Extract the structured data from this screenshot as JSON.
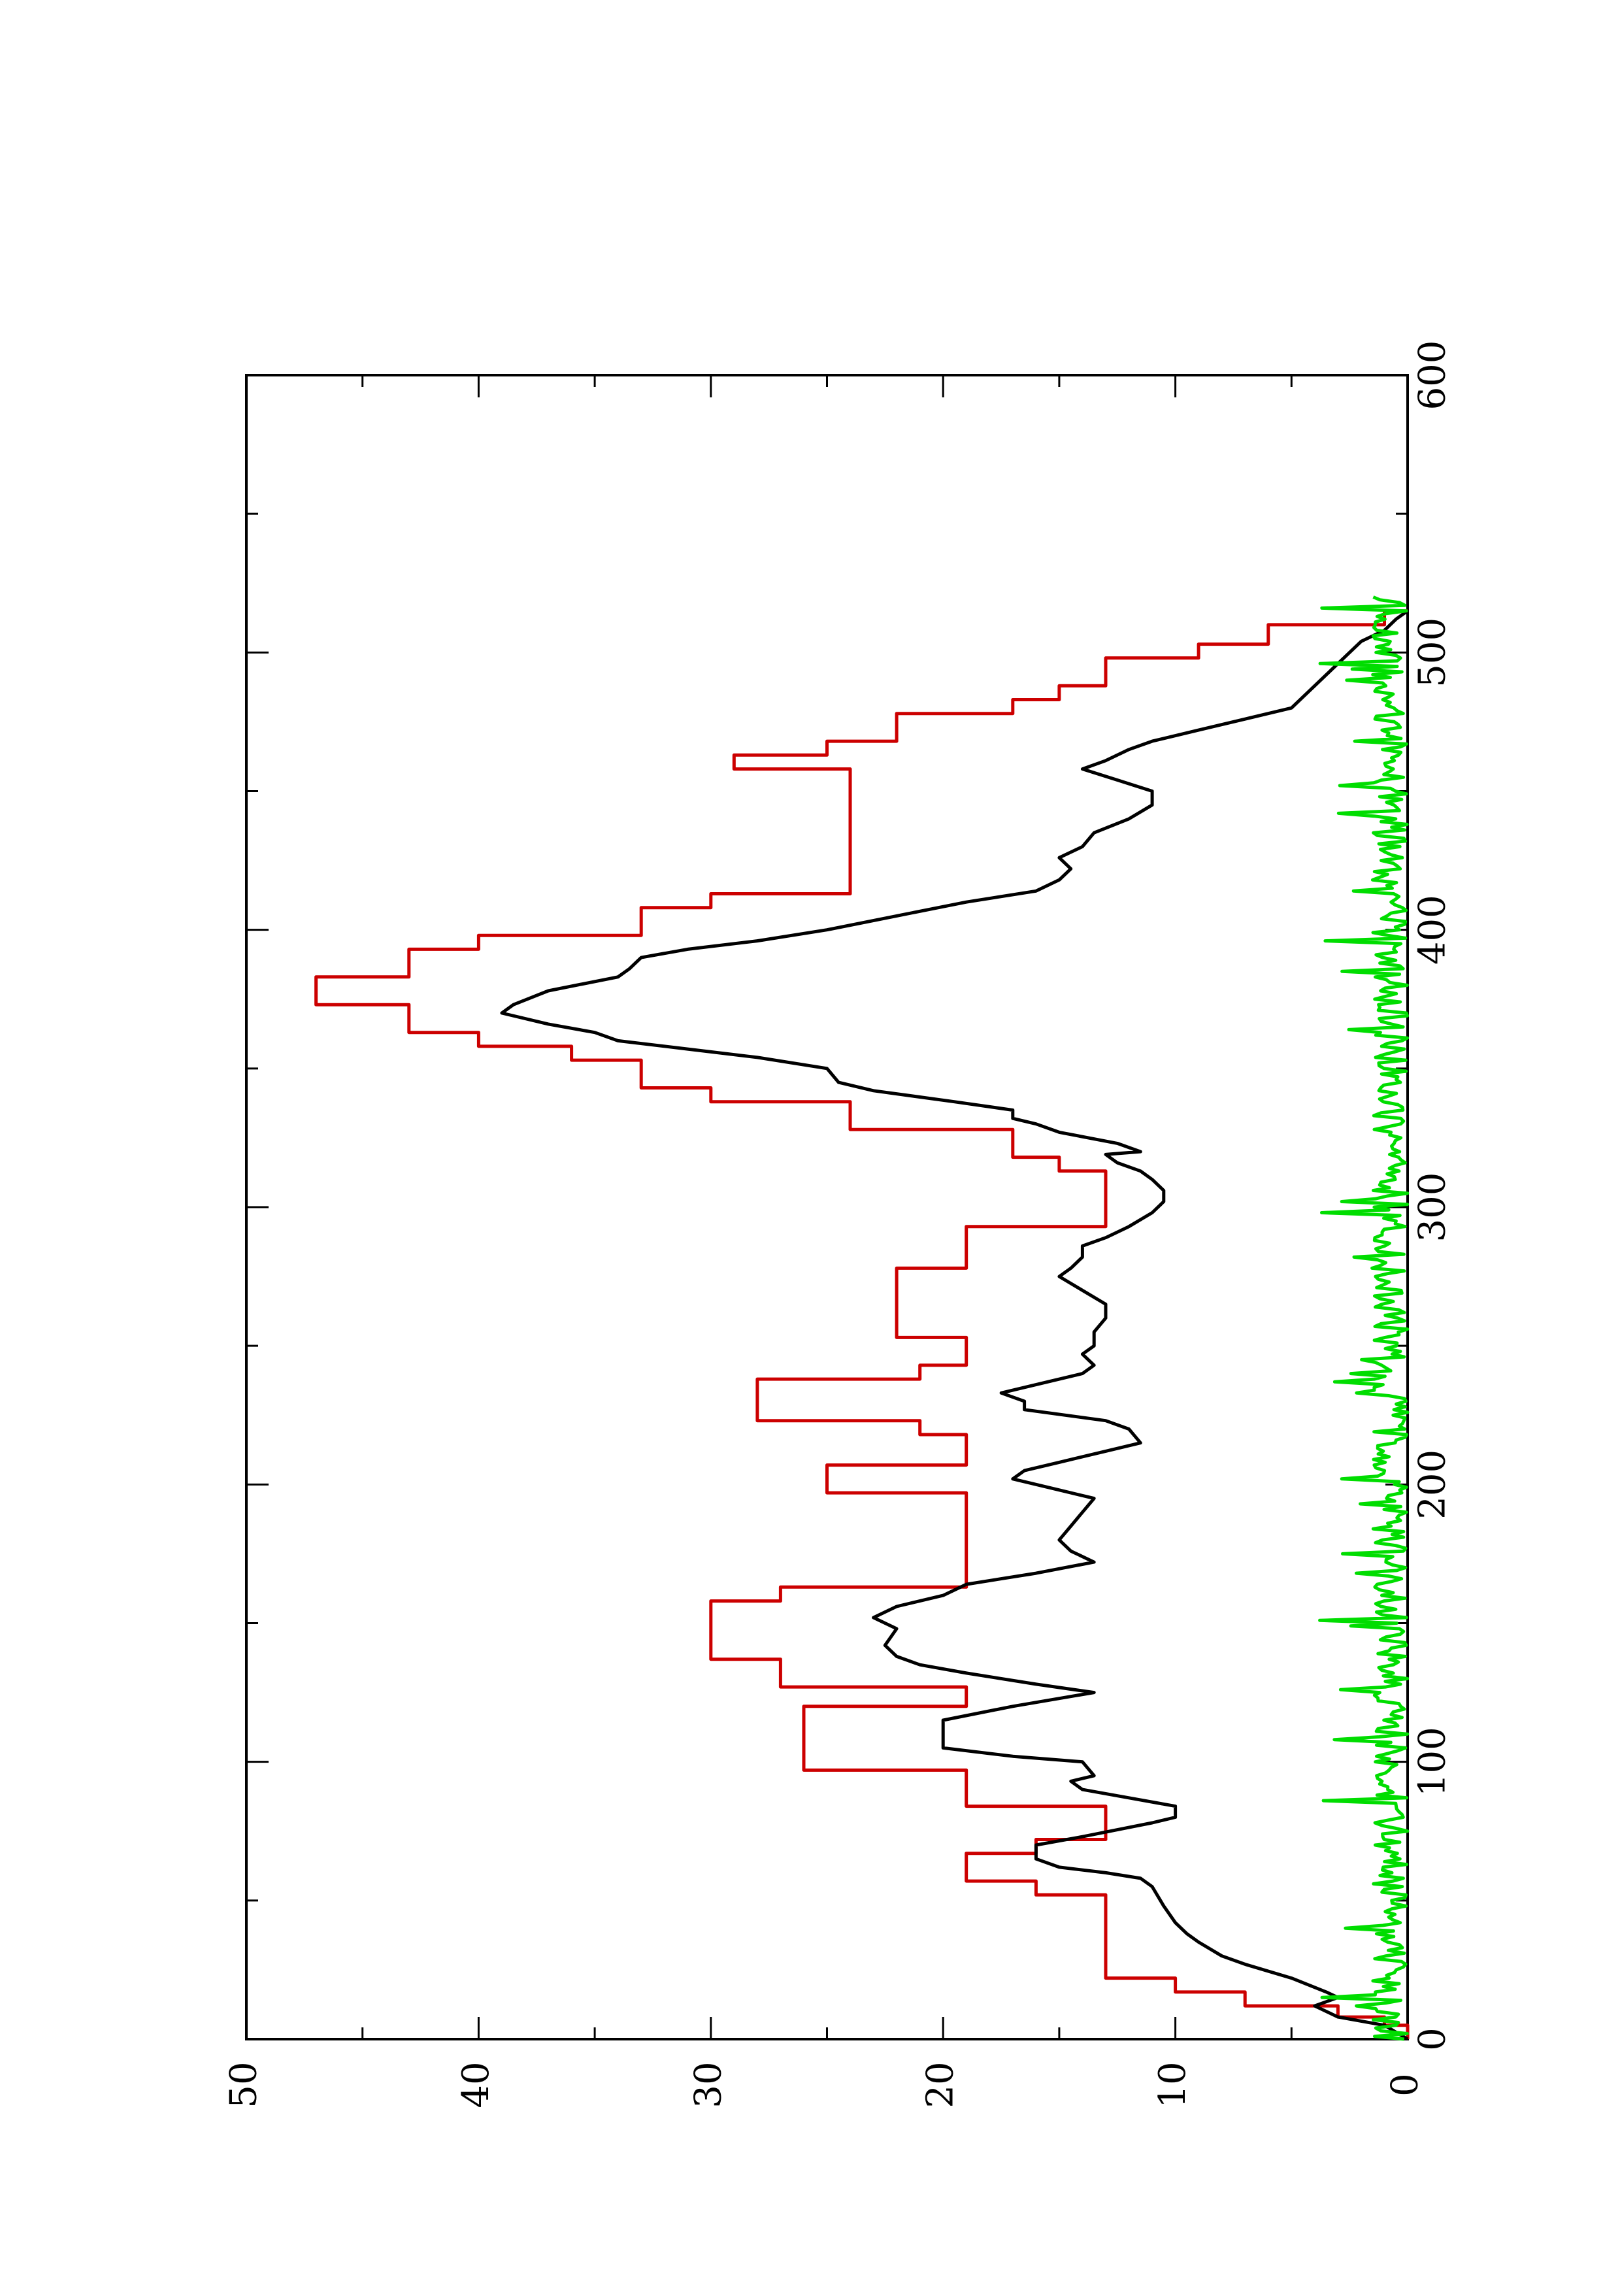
{
  "chart_data": {
    "type": "line",
    "orientation": "page rotated 90 degrees counter-clockwise",
    "title": "",
    "xlabel": "",
    "ylabel": "",
    "xlim": [
      0,
      600
    ],
    "ylim": [
      0,
      50
    ],
    "x_ticks": [
      0,
      100,
      200,
      300,
      400,
      500,
      600
    ],
    "x_tick_labels": [
      "0",
      "100",
      "200",
      "300",
      "400",
      "500",
      "600"
    ],
    "x_minor_ticks": [
      50,
      150,
      250,
      350,
      450,
      550
    ],
    "y_ticks": [
      0,
      10,
      20,
      30,
      40,
      50
    ],
    "y_tick_labels": [
      "0",
      "10",
      "20",
      "30",
      "40",
      "50"
    ],
    "y_minor_ticks": [
      5,
      15,
      25,
      35,
      45
    ],
    "grid": false,
    "legend": "none",
    "series": [
      {
        "color": "#cc0000",
        "step": true,
        "points": [
          [
            0,
            0
          ],
          [
            5,
            0
          ],
          [
            5,
            1
          ],
          [
            8,
            1
          ],
          [
            8,
            3
          ],
          [
            12,
            3
          ],
          [
            12,
            7
          ],
          [
            17,
            7
          ],
          [
            17,
            10
          ],
          [
            22,
            10
          ],
          [
            22,
            13
          ],
          [
            52,
            13
          ],
          [
            52,
            16
          ],
          [
            57,
            16
          ],
          [
            57,
            19
          ],
          [
            67,
            19
          ],
          [
            67,
            16
          ],
          [
            72,
            16
          ],
          [
            72,
            13
          ],
          [
            84,
            13
          ],
          [
            84,
            19
          ],
          [
            97,
            19
          ],
          [
            97,
            26
          ],
          [
            120,
            26
          ],
          [
            120,
            19
          ],
          [
            127,
            19
          ],
          [
            127,
            27
          ],
          [
            137,
            27
          ],
          [
            137,
            30
          ],
          [
            158,
            30
          ],
          [
            158,
            27
          ],
          [
            163,
            27
          ],
          [
            163,
            19
          ],
          [
            197,
            19
          ],
          [
            197,
            25
          ],
          [
            207,
            25
          ],
          [
            207,
            19
          ],
          [
            218,
            19
          ],
          [
            218,
            21
          ],
          [
            223,
            21
          ],
          [
            223,
            28
          ],
          [
            238,
            28
          ],
          [
            238,
            21
          ],
          [
            243,
            21
          ],
          [
            243,
            19
          ],
          [
            253,
            19
          ],
          [
            253,
            22
          ],
          [
            278,
            22
          ],
          [
            278,
            19
          ],
          [
            293,
            19
          ],
          [
            293,
            13
          ],
          [
            313,
            13
          ],
          [
            313,
            15
          ],
          [
            318,
            15
          ],
          [
            318,
            17
          ],
          [
            328,
            17
          ],
          [
            328,
            24
          ],
          [
            338,
            24
          ],
          [
            338,
            30
          ],
          [
            343,
            30
          ],
          [
            343,
            33
          ],
          [
            353,
            33
          ],
          [
            353,
            36
          ],
          [
            358,
            36
          ],
          [
            358,
            40
          ],
          [
            363,
            40
          ],
          [
            363,
            43
          ],
          [
            373,
            43
          ],
          [
            373,
            47
          ],
          [
            383,
            47
          ],
          [
            383,
            43
          ],
          [
            393,
            43
          ],
          [
            393,
            40
          ],
          [
            398,
            40
          ],
          [
            398,
            33
          ],
          [
            408,
            33
          ],
          [
            408,
            30
          ],
          [
            413,
            30
          ],
          [
            413,
            24
          ],
          [
            458,
            24
          ],
          [
            458,
            29
          ],
          [
            463,
            29
          ],
          [
            463,
            25
          ],
          [
            468,
            25
          ],
          [
            468,
            22
          ],
          [
            478,
            22
          ],
          [
            478,
            17
          ],
          [
            483,
            17
          ],
          [
            483,
            15
          ],
          [
            488,
            15
          ],
          [
            488,
            13
          ],
          [
            498,
            13
          ],
          [
            498,
            9
          ],
          [
            503,
            9
          ],
          [
            503,
            6
          ],
          [
            510,
            6
          ],
          [
            510,
            1
          ],
          [
            515,
            1
          ],
          [
            515,
            0
          ]
        ]
      },
      {
        "color": "#000000",
        "step": false,
        "points": [
          [
            0,
            0
          ],
          [
            5,
            1
          ],
          [
            8,
            3
          ],
          [
            12,
            4
          ],
          [
            15,
            3
          ],
          [
            17,
            3.5
          ],
          [
            22,
            5
          ],
          [
            27,
            7
          ],
          [
            30,
            8
          ],
          [
            35,
            9
          ],
          [
            38,
            9.5
          ],
          [
            42,
            10
          ],
          [
            48,
            10.5
          ],
          [
            55,
            11
          ],
          [
            58,
            11.5
          ],
          [
            60,
            13
          ],
          [
            62,
            15
          ],
          [
            65,
            16
          ],
          [
            70,
            16
          ],
          [
            73,
            14
          ],
          [
            78,
            11
          ],
          [
            80,
            10
          ],
          [
            84,
            10
          ],
          [
            87,
            12
          ],
          [
            90,
            14
          ],
          [
            93,
            14.5
          ],
          [
            95,
            13.5
          ],
          [
            100,
            14
          ],
          [
            102,
            17
          ],
          [
            105,
            20
          ],
          [
            115,
            20
          ],
          [
            120,
            17
          ],
          [
            125,
            13.5
          ],
          [
            128,
            16
          ],
          [
            132,
            19
          ],
          [
            135,
            21
          ],
          [
            138,
            22
          ],
          [
            142,
            22.5
          ],
          [
            148,
            22
          ],
          [
            152,
            23
          ],
          [
            156,
            22
          ],
          [
            160,
            20
          ],
          [
            164,
            19
          ],
          [
            168,
            16
          ],
          [
            172,
            13.5
          ],
          [
            176,
            14.5
          ],
          [
            180,
            15
          ],
          [
            185,
            14.5
          ],
          [
            190,
            14
          ],
          [
            195,
            13.5
          ],
          [
            198,
            15
          ],
          [
            202,
            17
          ],
          [
            205,
            16.5
          ],
          [
            208,
            15
          ],
          [
            212,
            13
          ],
          [
            215,
            11.5
          ],
          [
            220,
            12
          ],
          [
            223,
            13
          ],
          [
            227,
            16.5
          ],
          [
            230,
            16.5
          ],
          [
            233,
            17.5
          ],
          [
            236,
            16
          ],
          [
            240,
            14
          ],
          [
            243,
            13.5
          ],
          [
            247,
            14
          ],
          [
            250,
            13.5
          ],
          [
            255,
            13.5
          ],
          [
            260,
            13
          ],
          [
            265,
            13
          ],
          [
            270,
            14
          ],
          [
            275,
            15
          ],
          [
            278,
            14.5
          ],
          [
            282,
            14
          ],
          [
            286,
            14
          ],
          [
            289,
            13
          ],
          [
            293,
            12
          ],
          [
            298,
            11
          ],
          [
            302,
            10.5
          ],
          [
            306,
            10.5
          ],
          [
            310,
            11
          ],
          [
            313,
            11.5
          ],
          [
            316,
            12.5
          ],
          [
            319,
            13
          ],
          [
            320,
            11.5
          ],
          [
            323,
            12.5
          ],
          [
            327,
            15
          ],
          [
            330,
            16
          ],
          [
            332,
            17
          ],
          [
            335,
            17
          ],
          [
            338,
            19.5
          ],
          [
            342,
            23
          ],
          [
            345,
            24.5
          ],
          [
            350,
            25
          ],
          [
            354,
            28
          ],
          [
            357,
            31
          ],
          [
            360,
            34
          ],
          [
            363,
            35
          ],
          [
            366,
            37
          ],
          [
            370,
            39
          ],
          [
            373,
            38.5
          ],
          [
            378,
            37
          ],
          [
            383,
            34
          ],
          [
            386,
            33.5
          ],
          [
            390,
            33
          ],
          [
            393,
            31
          ],
          [
            396,
            28
          ],
          [
            400,
            25
          ],
          [
            405,
            22
          ],
          [
            410,
            19
          ],
          [
            414,
            16
          ],
          [
            418,
            15
          ],
          [
            422,
            14.5
          ],
          [
            426,
            15
          ],
          [
            430,
            14
          ],
          [
            435,
            13.5
          ],
          [
            440,
            12
          ],
          [
            445,
            11
          ],
          [
            450,
            11
          ],
          [
            454,
            12.5
          ],
          [
            458,
            14
          ],
          [
            461,
            13
          ],
          [
            465,
            12
          ],
          [
            468,
            11
          ],
          [
            472,
            9
          ],
          [
            476,
            7
          ],
          [
            480,
            5
          ],
          [
            484,
            4.5
          ],
          [
            488,
            4
          ],
          [
            492,
            3.5
          ],
          [
            496,
            3
          ],
          [
            500,
            2.5
          ],
          [
            504,
            2
          ],
          [
            508,
            1
          ],
          [
            512,
            0.5
          ],
          [
            515,
            0
          ]
        ]
      },
      {
        "color": "#00dd00",
        "step": false,
        "baseline": 0,
        "noise": true,
        "range_x": [
          0,
          520
        ],
        "typical_peak": 1.5,
        "max_peak": 3.8
      }
    ]
  }
}
